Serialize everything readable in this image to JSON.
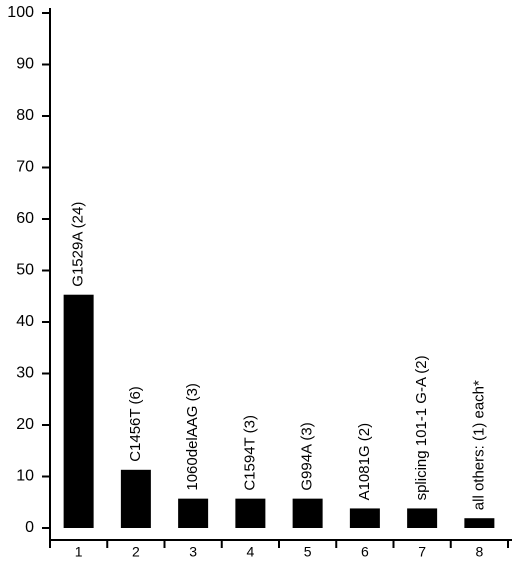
{
  "chart_data": {
    "type": "bar",
    "categories": [
      "1",
      "2",
      "3",
      "4",
      "5",
      "6",
      "7",
      "8"
    ],
    "values": [
      45.3,
      11.3,
      5.7,
      5.7,
      5.7,
      3.8,
      3.8,
      1.9
    ],
    "bar_labels": [
      "G1529A (24)",
      "C1456T (6)",
      "1060delAAG (3)",
      "C1594T (3)",
      "G994A (3)",
      "A1081G (2)",
      "splicing 101-1 G-A (2)",
      "all others: (1) each*"
    ],
    "color": "#000000",
    "ylim": [
      0,
      100
    ],
    "yticks": [
      0,
      10,
      20,
      30,
      40,
      50,
      60,
      70,
      80,
      90,
      100
    ],
    "grid": false
  }
}
